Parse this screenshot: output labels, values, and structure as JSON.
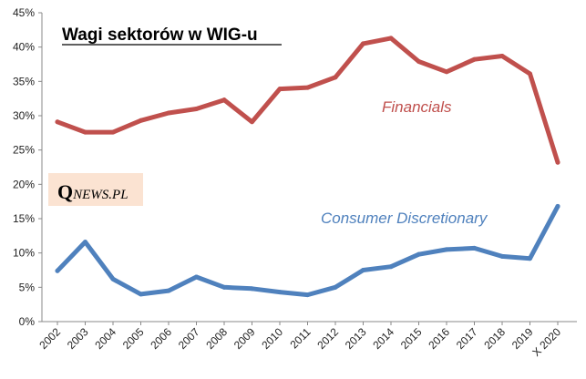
{
  "chart_data": {
    "type": "line",
    "title": "Wagi sektorów w WIG-u",
    "categories": [
      "2002",
      "2003",
      "2004",
      "2005",
      "2006",
      "2007",
      "2008",
      "2009",
      "2010",
      "2011",
      "2012",
      "2013",
      "2014",
      "2015",
      "2016",
      "2017",
      "2018",
      "2019",
      "X 2020"
    ],
    "y_ticks": [
      "0%",
      "5%",
      "10%",
      "15%",
      "20%",
      "25%",
      "30%",
      "35%",
      "40%",
      "45%"
    ],
    "ylim": [
      0,
      45
    ],
    "grid": false,
    "series": [
      {
        "name": "Financials",
        "color": "#c0504d",
        "values": [
          29.1,
          27.6,
          27.6,
          29.3,
          30.4,
          31.0,
          32.3,
          29.1,
          33.9,
          34.1,
          35.6,
          40.5,
          41.3,
          37.9,
          36.4,
          38.2,
          38.7,
          36.1,
          23.2
        ]
      },
      {
        "name": "Consumer Discretionary",
        "color": "#4f81bd",
        "values": [
          7.4,
          11.6,
          6.2,
          4.0,
          4.5,
          6.5,
          5.0,
          4.8,
          4.3,
          3.9,
          5.0,
          7.5,
          8.0,
          9.8,
          10.5,
          10.7,
          9.5,
          9.2,
          16.8
        ]
      }
    ]
  },
  "logo": {
    "q": "Q",
    "rest": "NEWS.PL",
    "bg_color": "#fbe3d2"
  }
}
